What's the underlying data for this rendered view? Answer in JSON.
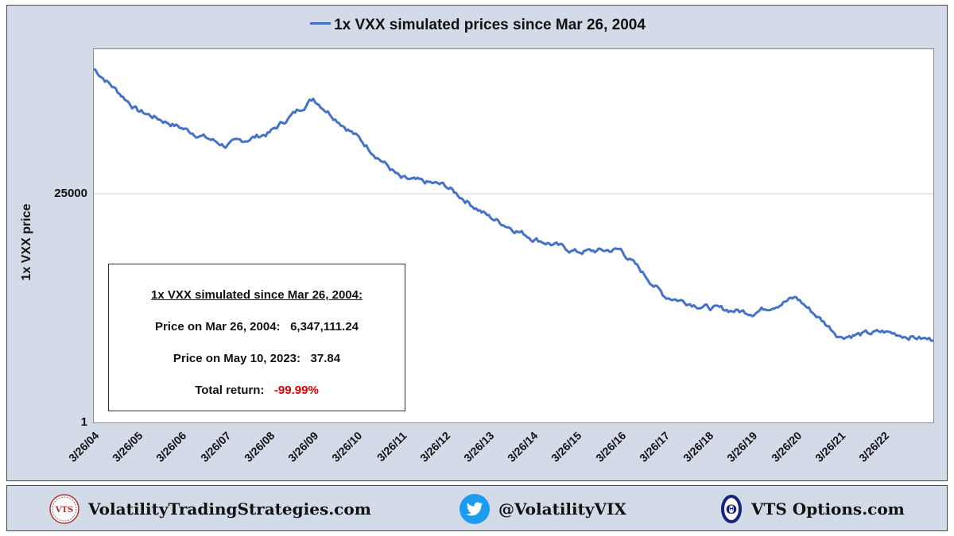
{
  "chart_data": {
    "type": "line",
    "title": "1x VXX simulated prices since Mar 26, 2004",
    "series": [
      {
        "name": "1x VXX simulated prices since Mar 26, 2004",
        "color": "#4472c4",
        "x": [
          "3/26/04",
          "3/26/05",
          "3/26/06",
          "3/26/07",
          "3/26/08",
          "3/26/09",
          "3/26/10",
          "3/26/11",
          "3/26/12",
          "3/26/13",
          "3/26/14",
          "3/26/15",
          "3/26/16",
          "3/26/17",
          "3/26/18",
          "3/26/19",
          "3/26/20",
          "3/26/21",
          "3/26/22",
          "5/10/23"
        ],
        "values": [
          6347111.24,
          1000000,
          460000,
          210000,
          370000,
          1700000,
          310000,
          48000,
          36000,
          9000,
          3500,
          1900,
          2100,
          270,
          160,
          130,
          250,
          45,
          55,
          37.84
        ]
      }
    ],
    "x_tick_labels": [
      "3/26/04",
      "3/26/05",
      "3/26/06",
      "3/26/07",
      "3/26/08",
      "3/26/09",
      "3/26/10",
      "3/26/11",
      "3/26/12",
      "3/26/13",
      "3/26/14",
      "3/26/15",
      "3/26/16",
      "3/26/17",
      "3/26/18",
      "3/26/19",
      "3/26/20",
      "3/26/21",
      "3/26/22"
    ],
    "y_tick_labels": [
      "25000",
      "1"
    ],
    "y_ticks": [
      25000,
      1
    ],
    "yscale": "log",
    "ylim": [
      1,
      15000000
    ],
    "xlabel": "",
    "ylabel": "1x VXX price",
    "grid": true,
    "legend": "top-center"
  },
  "infobox": {
    "title": "1x VXX simulated since Mar 26, 2004:",
    "start_label": "Price on Mar 26, 2004:",
    "start_value": "6,347,111.24",
    "end_label": "Price on May 10, 2023:",
    "end_value": "37.84",
    "return_label": "Total return:",
    "return_value": "-99.99%",
    "return_color": "#e00000"
  },
  "footer": {
    "site": "VolatilityTradingStrategies.com",
    "vts_badge": "VTS",
    "twitter": "@VolatilityVIX",
    "options": "VTS Options.com",
    "options_glyph": "Θ"
  }
}
